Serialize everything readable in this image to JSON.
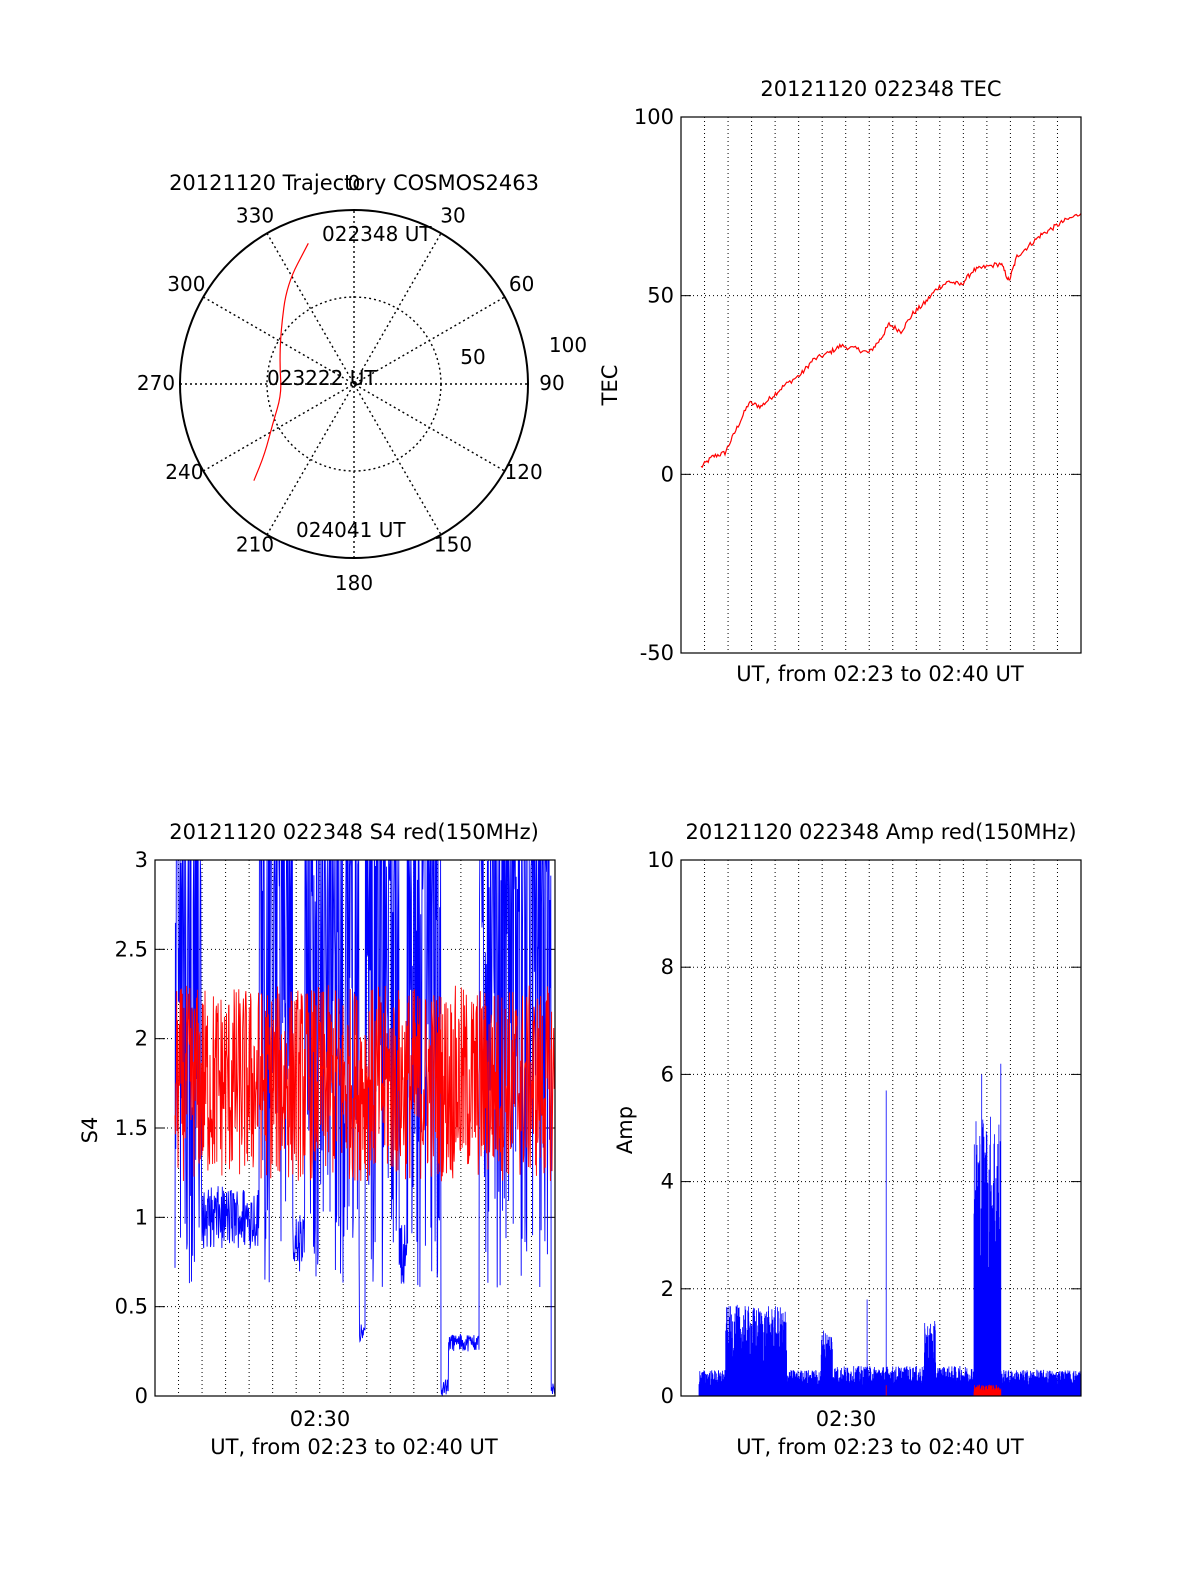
{
  "colors": {
    "primary": "#ff0000",
    "secondary": "#0000ff",
    "axis": "#000000",
    "grid": "#000000"
  },
  "chart_data": [
    {
      "id": "trajectory",
      "type": "polar",
      "title": "20121120 Trajectory COSMOS2463",
      "angle_labels": [
        "0",
        "30",
        "60",
        "90",
        "120",
        "150",
        "180",
        "210",
        "240",
        "270",
        "300",
        "330"
      ],
      "radial_labels": [
        "50",
        "100"
      ],
      "rlim": [
        0,
        100
      ],
      "grid": true,
      "annotations": [
        "022348 UT",
        "023222 UT",
        "024041 UT"
      ],
      "track": {
        "color": "red",
        "points": [
          [
            342,
            85
          ],
          [
            326,
            69
          ],
          [
            306,
            52
          ],
          [
            284,
            44
          ],
          [
            262,
            42
          ],
          [
            244,
            52
          ],
          [
            232,
            65
          ],
          [
            226,
            80
          ]
        ]
      }
    },
    {
      "id": "tec",
      "type": "line",
      "title": "20121120 022348 TEC",
      "xlabel": "UT, from 02:23 to 02:40 UT",
      "ylabel": "TEC",
      "ylim": [
        -50,
        100
      ],
      "y_ticks": [
        "-50",
        "0",
        "50",
        "100"
      ],
      "xlim": [
        0,
        1
      ],
      "grid": true,
      "series": [
        {
          "color": "red",
          "x": [
            0.05,
            0.08,
            0.11,
            0.14,
            0.17,
            0.2,
            0.23,
            0.26,
            0.3,
            0.33,
            0.37,
            0.4,
            0.44,
            0.47,
            0.5,
            0.52,
            0.55,
            0.58,
            0.61,
            0.64,
            0.67,
            0.7,
            0.73,
            0.76,
            0.8,
            0.82,
            0.84,
            0.87,
            0.9,
            0.93,
            0.96,
            1.0
          ],
          "y": [
            2,
            5,
            6,
            13,
            20,
            19,
            22,
            25,
            28,
            32,
            34,
            36,
            35,
            34,
            38,
            42,
            40,
            45,
            48,
            52,
            54,
            53,
            57,
            58,
            59,
            54,
            61,
            64,
            67,
            69,
            71,
            73
          ]
        }
      ]
    },
    {
      "id": "s4",
      "type": "line",
      "title": "20121120 022348 S4 red(150MHz)",
      "xlabel": "UT, from 02:23 to 02:40 UT",
      "ylabel": "S4",
      "ylim": [
        0,
        3
      ],
      "y_ticks": [
        "0",
        "0.5",
        "1",
        "1.5",
        "2",
        "2.5",
        "3"
      ],
      "x_tick_label": "02:30",
      "x_tick_pos": 0.4,
      "grid": true,
      "series": [
        {
          "color": "blue",
          "base": 1.8,
          "spread": 1.2,
          "clip_top": 3,
          "dips": [
            [
              0.07,
              0.22,
              1.0
            ],
            [
              0.31,
              0.34,
              0.85
            ],
            [
              0.485,
              0.5,
              0.35
            ],
            [
              0.59,
              0.61,
              0.8
            ],
            [
              0.7,
              0.72,
              0.05
            ],
            [
              0.72,
              0.8,
              0.3
            ],
            [
              0.99,
              1.0,
              0.05
            ]
          ]
        },
        {
          "color": "red",
          "base": 1.75,
          "spread": 0.55,
          "clip_top": 3
        }
      ]
    },
    {
      "id": "amp",
      "type": "line",
      "title": "20121120 022348 Amp red(150MHz)",
      "xlabel": "UT, from 02:23 to 02:40 UT",
      "ylabel": "Amp",
      "ylim": [
        0,
        10
      ],
      "y_ticks": [
        "0",
        "2",
        "4",
        "6",
        "8",
        "10"
      ],
      "x_tick_label": "02:30",
      "x_tick_pos": 0.4,
      "grid": true,
      "series": [
        {
          "color": "blue",
          "segments": [
            [
              0.0,
              0.07,
              0.35
            ],
            [
              0.07,
              0.23,
              1.2
            ],
            [
              0.23,
              0.32,
              0.35
            ],
            [
              0.32,
              0.35,
              0.9
            ],
            [
              0.35,
              0.59,
              0.4
            ],
            [
              0.59,
              0.62,
              1.0
            ],
            [
              0.62,
              0.72,
              0.4
            ],
            [
              0.72,
              0.79,
              3.8
            ],
            [
              0.79,
              1.0,
              0.35
            ]
          ],
          "spikes": [
            [
              0.1,
              1.7
            ],
            [
              0.44,
              1.8
            ],
            [
              0.49,
              5.7
            ],
            [
              0.74,
              6.0
            ],
            [
              0.79,
              6.2
            ]
          ]
        },
        {
          "color": "red",
          "segments": [
            [
              0.72,
              0.79,
              0.15
            ]
          ],
          "spikes": [
            [
              0.49,
              0.2
            ]
          ]
        }
      ]
    }
  ]
}
